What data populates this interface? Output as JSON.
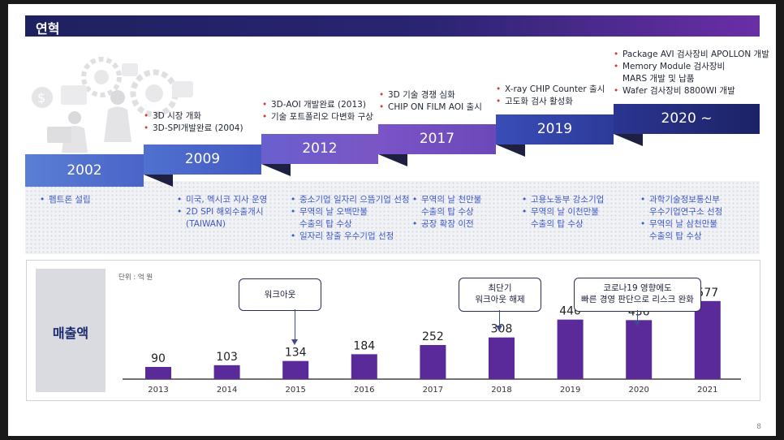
{
  "title": "연혁",
  "page_number": "8",
  "timeline": {
    "steps": [
      {
        "year": "2002"
      },
      {
        "year": "2009"
      },
      {
        "year": "2012"
      },
      {
        "year": "2017"
      },
      {
        "year": "2019"
      },
      {
        "year": "2020 ~"
      }
    ],
    "above": [
      {
        "items": [
          "3D 시장 개화",
          "3D-SPI개발완료 (2004)"
        ]
      },
      {
        "items": [
          "3D-AOI 개발완료 (2013)",
          "기술 포트폴리오 다변화 구상"
        ]
      },
      {
        "items": [
          "3D 기술 경쟁 심화",
          "CHIP ON FILM AOI 출시"
        ]
      },
      {
        "items": [
          "X-ray CHIP Counter 출시",
          "고도화 검사 활성화"
        ]
      },
      {
        "items": [
          "Package AVI 검사장비 APOLLON 개발",
          "Memory Module 검사장비",
          "MARS 개발 및 납품",
          "Wafer 검사장비 8800WI 개발"
        ]
      }
    ],
    "below": [
      {
        "items": [
          "펨트론 설립"
        ]
      },
      {
        "items": [
          "미국, 멕시코 지사 운영",
          "2D SPI 해외수출개시",
          "(TAIWAN)"
        ]
      },
      {
        "items": [
          "중소기업 일자리 으뜸기업 선정",
          "무역의 날 오백만불",
          "수출의 탑 수상",
          "일자리 창출 우수기업 선정"
        ]
      },
      {
        "items": [
          "무역의 날 천만불",
          "수출의 탑 수상",
          "공장 확장 이전"
        ]
      },
      {
        "items": [
          "고용노동부 강소기업",
          "무역의 날 이천만불",
          "수출의 탑 수상"
        ]
      },
      {
        "items": [
          "과학기술정보통신부",
          "우수기업연구소 선정",
          "무역의 날 삼천만불",
          "수출의 탑 수상"
        ]
      }
    ]
  },
  "revenue": {
    "label": "매출액",
    "unit": "단위 : 억 원",
    "callouts": [
      {
        "text": [
          "워크아웃"
        ],
        "year": "2015"
      },
      {
        "text": [
          "최단기",
          "워크아웃 해제"
        ],
        "year": "2018"
      },
      {
        "text": [
          "코로나19 영향에도",
          "빠른 경영 판단으로 리스크 완화"
        ],
        "year": "2020"
      }
    ]
  },
  "colors": {
    "bar": "#5b2a9a",
    "title_bar": "#1e2160",
    "accent_red": "#e0352b",
    "accent_blue": "#3d58c7"
  },
  "chart_data": {
    "type": "bar",
    "categories": [
      "2013",
      "2014",
      "2015",
      "2016",
      "2017",
      "2018",
      "2019",
      "2020",
      "2021"
    ],
    "values": [
      90,
      103,
      134,
      184,
      252,
      308,
      440,
      436,
      577
    ],
    "title": "",
    "xlabel": "",
    "ylabel": "매출액",
    "ylim": [
      0,
      600
    ]
  }
}
